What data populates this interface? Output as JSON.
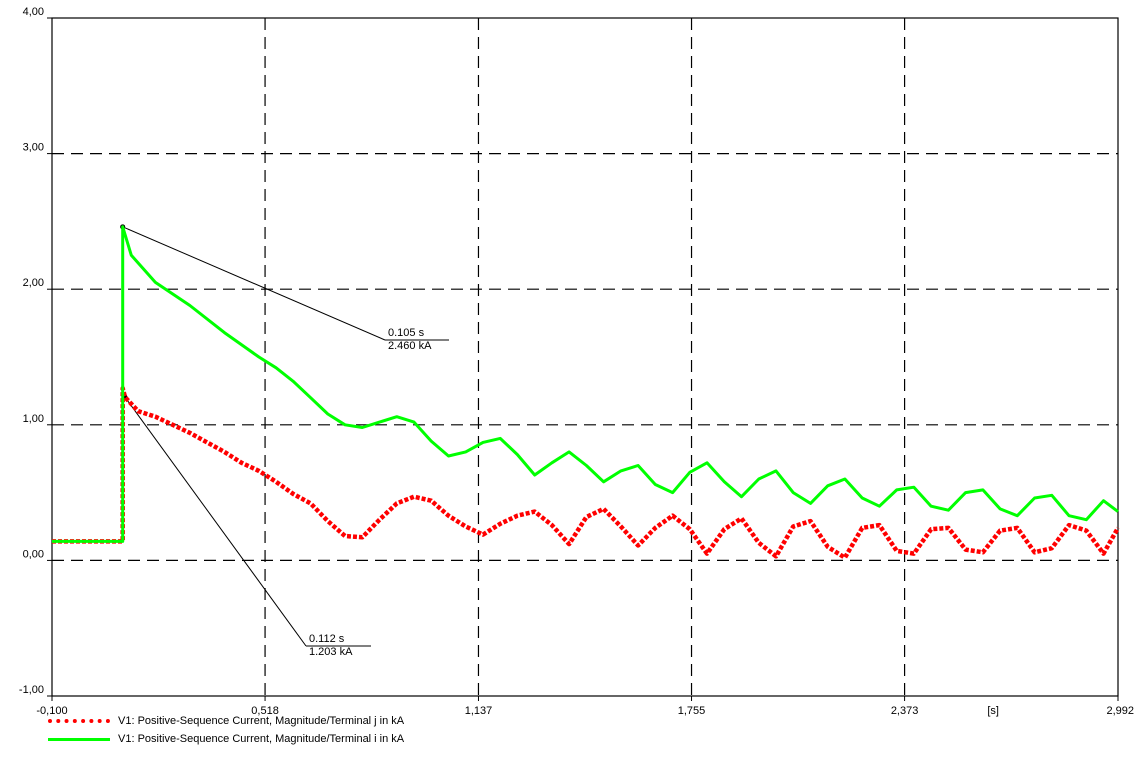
{
  "chart_data": {
    "type": "line",
    "xlim": [
      -0.1,
      2.992
    ],
    "ylim": [
      -1.0,
      4.0
    ],
    "x_ticks": [
      "-0,100",
      "0,518",
      "1,137",
      "1,755",
      "2,373",
      "2,992"
    ],
    "x_tick_values": [
      -0.1,
      0.518,
      1.137,
      1.755,
      2.373,
      2.992
    ],
    "x_unit_label": "[s]",
    "y_ticks": [
      "-1,00",
      "0,00",
      "1,00",
      "2,00",
      "3,00",
      "4,00"
    ],
    "y_tick_values": [
      -1,
      0,
      1,
      2,
      3,
      4
    ],
    "grid": true,
    "legend_position": "bottom-left",
    "series": [
      {
        "name": "V1: Positive-Sequence Current, Magnitude/Terminal j in kA",
        "color": "#ff0000",
        "style": "dotted",
        "x": [
          -0.1,
          0.105,
          0.105,
          0.112,
          0.15,
          0.2,
          0.25,
          0.3,
          0.35,
          0.4,
          0.45,
          0.5,
          0.55,
          0.6,
          0.65,
          0.7,
          0.75,
          0.8,
          0.85,
          0.9,
          0.95,
          1.0,
          1.05,
          1.1,
          1.15,
          1.2,
          1.25,
          1.3,
          1.35,
          1.4,
          1.45,
          1.5,
          1.55,
          1.6,
          1.65,
          1.7,
          1.75,
          1.8,
          1.85,
          1.9,
          1.95,
          2.0,
          2.05,
          2.1,
          2.15,
          2.2,
          2.25,
          2.3,
          2.35,
          2.4,
          2.45,
          2.5,
          2.55,
          2.6,
          2.65,
          2.7,
          2.75,
          2.8,
          2.85,
          2.9,
          2.95,
          2.992
        ],
        "y": [
          0.14,
          0.14,
          1.27,
          1.203,
          1.1,
          1.06,
          1.0,
          0.94,
          0.87,
          0.8,
          0.72,
          0.66,
          0.58,
          0.49,
          0.42,
          0.29,
          0.18,
          0.17,
          0.3,
          0.42,
          0.47,
          0.44,
          0.33,
          0.25,
          0.19,
          0.27,
          0.33,
          0.36,
          0.26,
          0.12,
          0.32,
          0.38,
          0.25,
          0.11,
          0.24,
          0.33,
          0.23,
          0.05,
          0.23,
          0.31,
          0.13,
          0.03,
          0.25,
          0.29,
          0.1,
          0.02,
          0.24,
          0.26,
          0.07,
          0.05,
          0.23,
          0.24,
          0.08,
          0.06,
          0.22,
          0.24,
          0.06,
          0.09,
          0.26,
          0.22,
          0.05,
          0.24
        ]
      },
      {
        "name": "V1: Positive-Sequence Current, Magnitude/Terminal i in kA",
        "color": "#00ff00",
        "style": "solid",
        "x": [
          -0.1,
          0.105,
          0.105,
          0.13,
          0.2,
          0.3,
          0.4,
          0.5,
          0.55,
          0.6,
          0.65,
          0.7,
          0.75,
          0.8,
          0.85,
          0.9,
          0.95,
          1.0,
          1.05,
          1.1,
          1.15,
          1.2,
          1.25,
          1.3,
          1.35,
          1.4,
          1.45,
          1.5,
          1.55,
          1.6,
          1.65,
          1.7,
          1.75,
          1.8,
          1.85,
          1.9,
          1.95,
          2.0,
          2.05,
          2.1,
          2.15,
          2.2,
          2.25,
          2.3,
          2.35,
          2.4,
          2.45,
          2.5,
          2.55,
          2.6,
          2.65,
          2.7,
          2.75,
          2.8,
          2.85,
          2.9,
          2.95,
          2.992
        ],
        "y": [
          0.14,
          0.14,
          2.46,
          2.25,
          2.05,
          1.88,
          1.68,
          1.5,
          1.42,
          1.32,
          1.2,
          1.08,
          1.0,
          0.98,
          1.02,
          1.06,
          1.02,
          0.88,
          0.77,
          0.8,
          0.87,
          0.9,
          0.78,
          0.63,
          0.72,
          0.8,
          0.7,
          0.58,
          0.66,
          0.7,
          0.56,
          0.5,
          0.65,
          0.72,
          0.58,
          0.47,
          0.6,
          0.66,
          0.5,
          0.42,
          0.55,
          0.6,
          0.46,
          0.4,
          0.52,
          0.54,
          0.4,
          0.37,
          0.5,
          0.52,
          0.38,
          0.33,
          0.46,
          0.48,
          0.33,
          0.3,
          0.44,
          0.36
        ]
      }
    ],
    "annotations": [
      {
        "x": 0.105,
        "y": 2.46,
        "time_label": "0.105 s",
        "value_label": "2.460 kA"
      },
      {
        "x": 0.112,
        "y": 1.203,
        "time_label": "0.112 s",
        "value_label": "1.203 kA"
      }
    ]
  }
}
